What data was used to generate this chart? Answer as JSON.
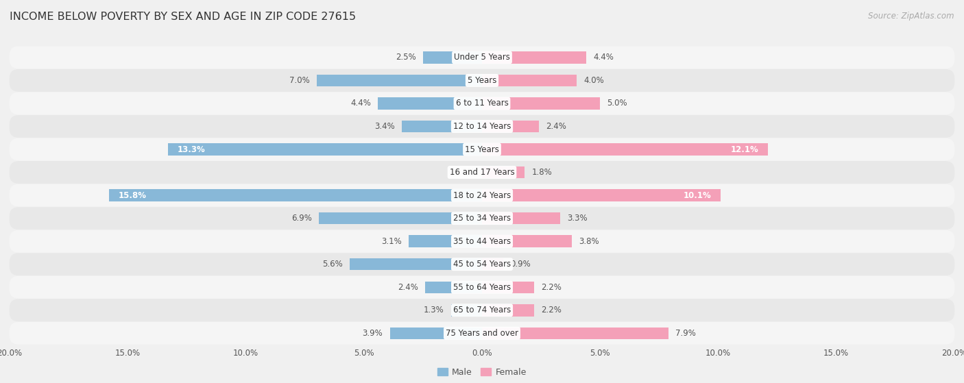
{
  "title": "INCOME BELOW POVERTY BY SEX AND AGE IN ZIP CODE 27615",
  "source": "Source: ZipAtlas.com",
  "categories": [
    "Under 5 Years",
    "5 Years",
    "6 to 11 Years",
    "12 to 14 Years",
    "15 Years",
    "16 and 17 Years",
    "18 to 24 Years",
    "25 to 34 Years",
    "35 to 44 Years",
    "45 to 54 Years",
    "55 to 64 Years",
    "65 to 74 Years",
    "75 Years and over"
  ],
  "male": [
    2.5,
    7.0,
    4.4,
    3.4,
    13.3,
    0.0,
    15.8,
    6.9,
    3.1,
    5.6,
    2.4,
    1.3,
    3.9
  ],
  "female": [
    4.4,
    4.0,
    5.0,
    2.4,
    12.1,
    1.8,
    10.1,
    3.3,
    3.8,
    0.9,
    2.2,
    2.2,
    7.9
  ],
  "male_color": "#88b8d8",
  "female_color": "#f4a0b8",
  "male_label": "Male",
  "female_label": "Female",
  "xlim": 20.0,
  "bg_color": "#f0f0f0",
  "row_bg_even": "#f5f5f5",
  "row_bg_odd": "#e8e8e8",
  "title_fontsize": 11.5,
  "source_fontsize": 8.5,
  "label_fontsize": 8.5,
  "axis_label_fontsize": 8.5,
  "bar_height": 0.52,
  "figsize": [
    14.06,
    5.59
  ],
  "dpi": 100
}
